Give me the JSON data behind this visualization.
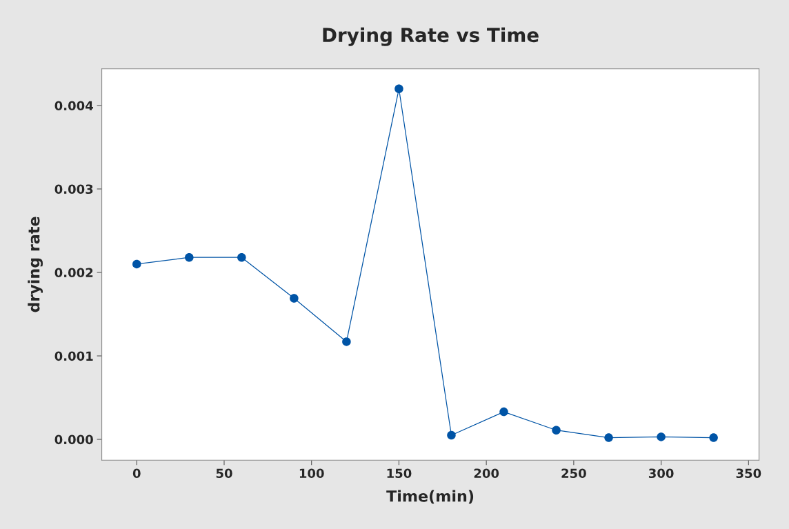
{
  "chart_data": {
    "type": "line",
    "title": "Drying Rate vs Time",
    "xlabel": "Time(min)",
    "ylabel": "drying rate",
    "x": [
      0,
      30,
      60,
      90,
      120,
      150,
      180,
      210,
      240,
      270,
      300,
      330
    ],
    "series": [
      {
        "color": "#0054a6",
        "values": [
          0.0021,
          0.00218,
          0.00218,
          0.00169,
          0.00117,
          0.0042,
          5e-05,
          0.00033,
          0.00011,
          2e-05,
          3e-05,
          2e-05
        ]
      }
    ],
    "xlim": [
      -20,
      356
    ],
    "ylim": [
      -0.00025,
      0.00444
    ],
    "xticks": [
      0,
      50,
      100,
      150,
      200,
      250,
      300,
      350
    ],
    "yticks": [
      {
        "value": 0,
        "label": "0.000"
      },
      {
        "value": 0.001,
        "label": "0.001"
      },
      {
        "value": 0.002,
        "label": "0.002"
      },
      {
        "value": 0.003,
        "label": "0.003"
      },
      {
        "value": 0.004,
        "label": "0.004"
      }
    ],
    "marker": "circle",
    "line_style": "solid",
    "grid": false,
    "legend": false
  }
}
